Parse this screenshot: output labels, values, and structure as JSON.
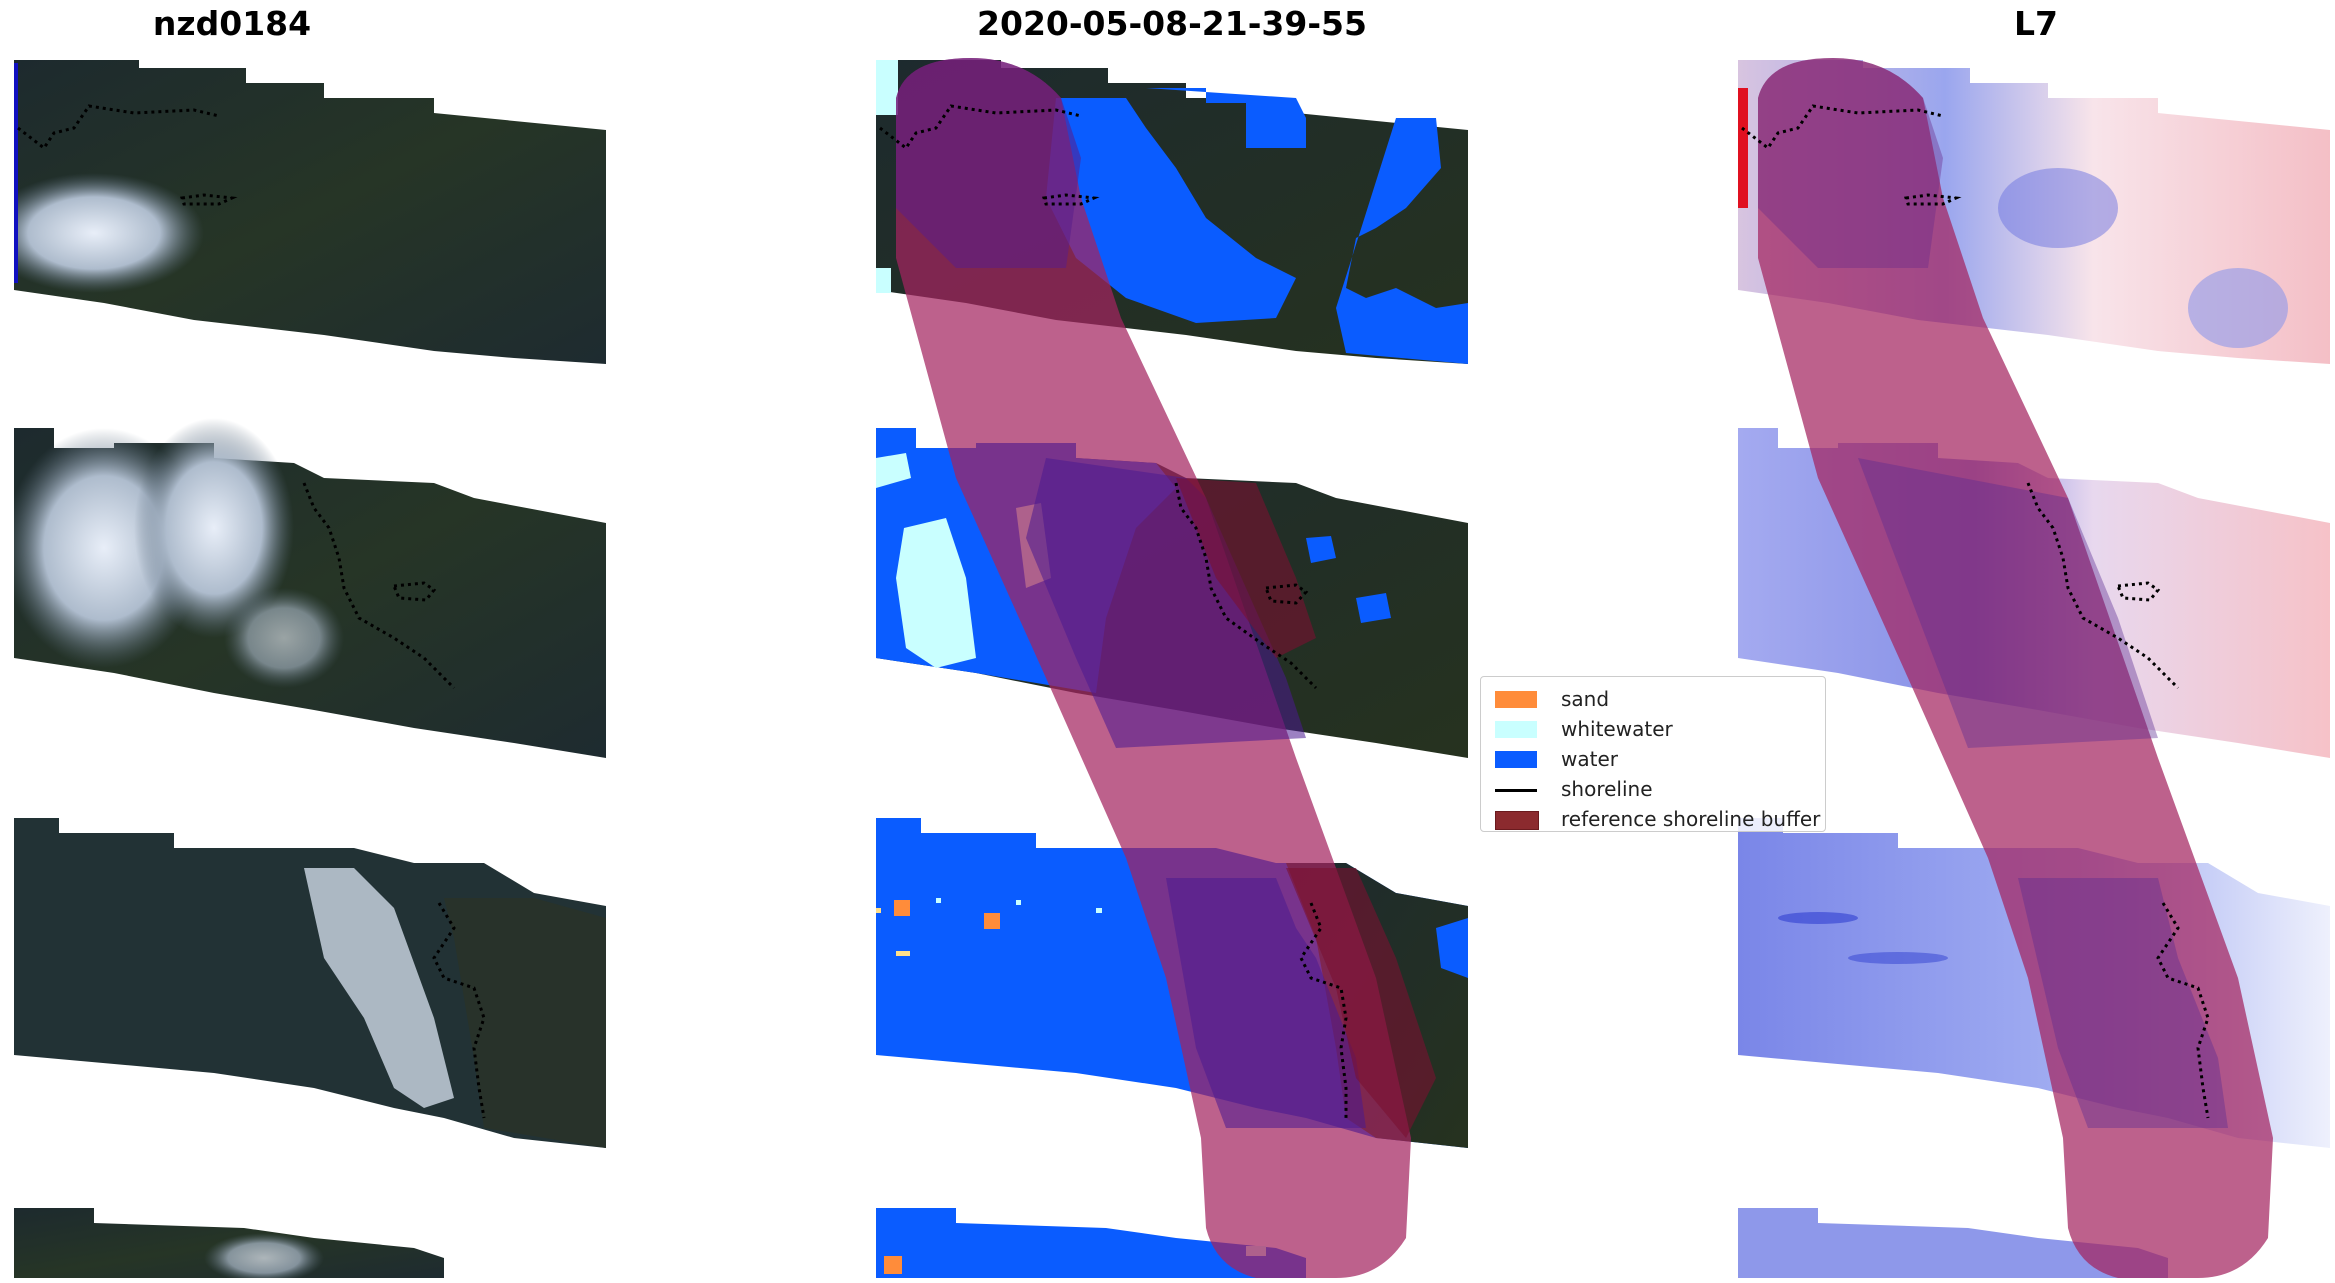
{
  "titles": {
    "left": "nzd0184",
    "center": "2020-05-08-21-39-55",
    "right": "L7"
  },
  "legend": {
    "items": [
      {
        "label": "sand",
        "kind": "patch",
        "color": "#ff8c3a"
      },
      {
        "label": "whitewater",
        "kind": "patch",
        "color": "#c9ffff"
      },
      {
        "label": "water",
        "kind": "patch",
        "color": "#0a5cff"
      },
      {
        "label": "shoreline",
        "kind": "line",
        "color": "#000000"
      },
      {
        "label": "reference shoreline buffer",
        "kind": "patch",
        "color": "#8b2a2e"
      }
    ]
  },
  "colors": {
    "vegetation": "#1e2b30",
    "cloud": "#c8d0de",
    "water_class": "#0a5cff",
    "whitewater_class": "#c9ffff",
    "sand_class": "#ff8c3a",
    "buffer": "#a3245f",
    "ndwi_blue": "#7a86e8",
    "ndwi_red": "#f4b8bd"
  }
}
